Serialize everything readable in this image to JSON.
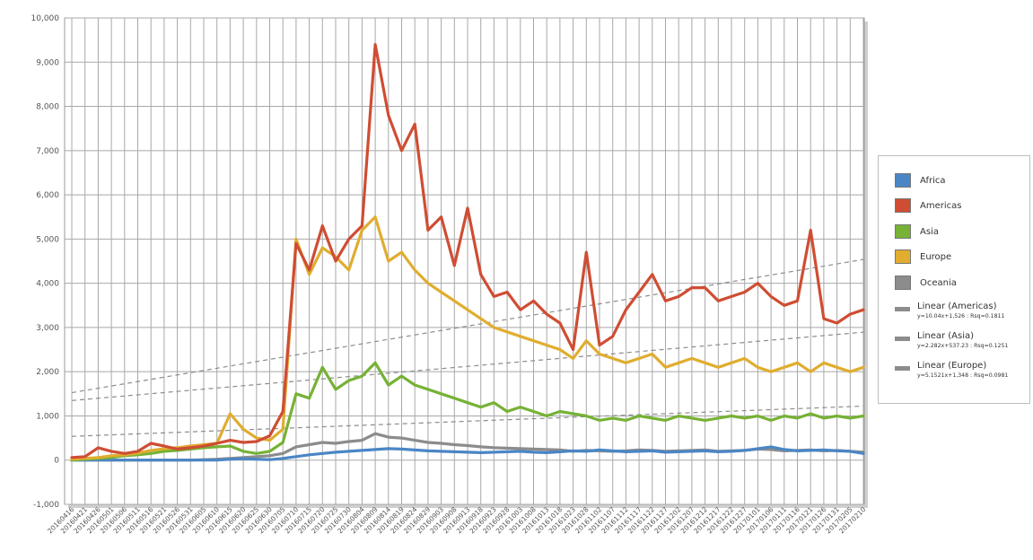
{
  "chart_data": {
    "type": "line",
    "y_ticks": [
      "-1,000",
      "0",
      "1,000",
      "2,000",
      "3,000",
      "4,000",
      "5,000",
      "6,000",
      "7,000",
      "8,000",
      "9,000",
      "10,000"
    ],
    "ylim": [
      -1000,
      10000
    ],
    "x_tick_labels": [
      "20160416",
      "20160421",
      "20160426",
      "20160501",
      "20160506",
      "20160511",
      "20160516",
      "20160521",
      "20160526",
      "20160531",
      "20160605",
      "20160610",
      "20160615",
      "20160620",
      "20160625",
      "20160630",
      "20160705",
      "20160710",
      "20160715",
      "20160720",
      "20160725",
      "20160730",
      "20160804",
      "20160809",
      "20160814",
      "20160819",
      "20160824",
      "20160829",
      "20160903",
      "20160908",
      "20160913",
      "20160918",
      "20160923",
      "20160928",
      "20161003",
      "20161008",
      "20161013",
      "20161018",
      "20161023",
      "20161028",
      "20161102",
      "20161107",
      "20161112",
      "20161117",
      "20161122",
      "20161127",
      "20161202",
      "20161207",
      "20161212",
      "20161217",
      "20161222",
      "20161227",
      "20170101",
      "20170106",
      "20170111",
      "20170116",
      "20170121",
      "20170126",
      "20170131",
      "20170205",
      "20170210"
    ],
    "grid": true,
    "legend_position": "right",
    "series": [
      {
        "name": "Africa",
        "color": "#4a86c5",
        "values": [
          0,
          0,
          0,
          0,
          0,
          0,
          0,
          0,
          0,
          0,
          0,
          0,
          20,
          30,
          20,
          10,
          40,
          80,
          120,
          150,
          180,
          200,
          220,
          240,
          260,
          250,
          230,
          210,
          200,
          190,
          180,
          170,
          180,
          190,
          200,
          180,
          170,
          190,
          210,
          200,
          230,
          210,
          190,
          200,
          210,
          180,
          190,
          200,
          210,
          190,
          200,
          220,
          260,
          300,
          240,
          210,
          220,
          230,
          210,
          200,
          150
        ]
      },
      {
        "name": "Americas",
        "color": "#cf4d33",
        "values": [
          60,
          80,
          280,
          200,
          150,
          200,
          380,
          320,
          250,
          280,
          320,
          380,
          450,
          400,
          420,
          550,
          1100,
          4900,
          4300,
          5300,
          4500,
          5000,
          5300,
          9400,
          7800,
          7000,
          7600,
          5200,
          5500,
          4400,
          5700,
          4200,
          3700,
          3800,
          3400,
          3600,
          3300,
          3100,
          2500,
          4700,
          2600,
          2800,
          3400,
          3800,
          4200,
          3600,
          3700,
          3900,
          3900,
          3600,
          3700,
          3800,
          4000,
          3700,
          3500,
          3600,
          5200,
          3200,
          3100,
          3300,
          3400
        ]
      },
      {
        "name": "Asia",
        "color": "#76b235",
        "values": [
          0,
          20,
          40,
          60,
          100,
          120,
          150,
          200,
          220,
          250,
          280,
          300,
          320,
          200,
          150,
          200,
          400,
          1500,
          1400,
          2100,
          1600,
          1800,
          1900,
          2200,
          1700,
          1900,
          1700,
          1600,
          1500,
          1400,
          1300,
          1200,
          1300,
          1100,
          1200,
          1100,
          1000,
          1100,
          1050,
          1000,
          900,
          950,
          900,
          1000,
          950,
          900,
          1000,
          950,
          900,
          950,
          1000,
          950,
          1000,
          900,
          1000,
          950,
          1050,
          950,
          1000,
          950,
          1000
        ]
      },
      {
        "name": "Europe",
        "color": "#e0ad2f",
        "values": [
          20,
          40,
          60,
          100,
          120,
          160,
          220,
          260,
          280,
          320,
          350,
          380,
          1050,
          700,
          500,
          450,
          700,
          5000,
          4200,
          4800,
          4600,
          4300,
          5200,
          5500,
          4500,
          4700,
          4300,
          4000,
          3800,
          3600,
          3400,
          3200,
          3000,
          2900,
          2800,
          2700,
          2600,
          2500,
          2300,
          2700,
          2400,
          2300,
          2200,
          2300,
          2400,
          2100,
          2200,
          2300,
          2200,
          2100,
          2200,
          2300,
          2100,
          2000,
          2100,
          2200,
          2000,
          2200,
          2100,
          2000,
          2100
        ]
      },
      {
        "name": "Oceania",
        "color": "#8c8c8c",
        "values": [
          0,
          0,
          0,
          0,
          0,
          0,
          0,
          0,
          0,
          0,
          10,
          20,
          40,
          60,
          80,
          100,
          150,
          300,
          350,
          400,
          380,
          420,
          450,
          600,
          520,
          500,
          450,
          400,
          380,
          350,
          330,
          300,
          280,
          270,
          260,
          250,
          240,
          230,
          200,
          220,
          210,
          200,
          210,
          230,
          220,
          200,
          210,
          220,
          230,
          200,
          210,
          220,
          250,
          240,
          210,
          220,
          230,
          210,
          220,
          200,
          180
        ]
      }
    ],
    "trendlines": [
      {
        "name": "Linear (Americas)",
        "equation": "y=10.04x+1,526 : Rsq=0.1811",
        "slope_per_day": 10.04,
        "intercept": 1526
      },
      {
        "name": "Linear (Asia)",
        "equation": "y=2.282x+537.23 : Rsq=0.1251",
        "slope_per_day": 2.282,
        "intercept": 537.23
      },
      {
        "name": "Linear (Europe)",
        "equation": "y=5.1521x+1,348 : Rsq=0.0981",
        "slope_per_day": 5.1521,
        "intercept": 1348
      }
    ]
  },
  "legend": {
    "items": [
      {
        "label": "Africa",
        "color": "#4a86c5"
      },
      {
        "label": "Americas",
        "color": "#cf4d33"
      },
      {
        "label": "Asia",
        "color": "#76b235"
      },
      {
        "label": "Europe",
        "color": "#e0ad2f"
      },
      {
        "label": "Oceania",
        "color": "#8c8c8c"
      }
    ],
    "trends": [
      {
        "name": "Linear (Americas)",
        "equation": "y=10.04x+1,526 : Rsq=0.1811"
      },
      {
        "name": "Linear (Asia)",
        "equation": "y=2.282x+537.23 : Rsq=0.1251"
      },
      {
        "name": "Linear (Europe)",
        "equation": "y=5.1521x+1,348 : Rsq=0.0981"
      }
    ]
  }
}
